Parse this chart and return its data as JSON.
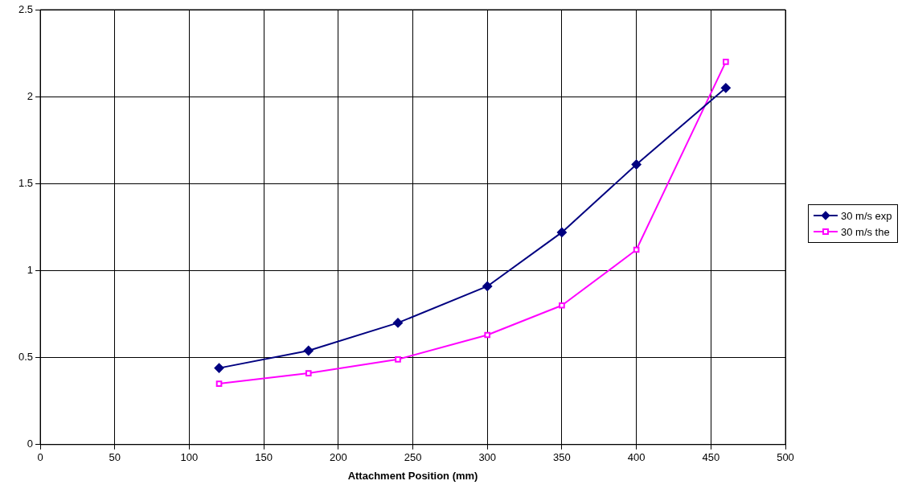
{
  "chart_data": {
    "type": "line",
    "xlabel": "Attachment Position (mm)",
    "xlim": [
      0,
      500
    ],
    "xticks": [
      0,
      50,
      100,
      150,
      200,
      250,
      300,
      350,
      400,
      450,
      500
    ],
    "ylim": [
      0,
      2.5
    ],
    "yticks": [
      0,
      0.5,
      1,
      1.5,
      2,
      2.5
    ],
    "grid": true,
    "legend": "right",
    "series": [
      {
        "name": "30 m/s exp",
        "color": "#000080",
        "marker": "diamond",
        "x": [
          120,
          180,
          240,
          300,
          350,
          400,
          460
        ],
        "values": [
          0.44,
          0.54,
          0.7,
          0.91,
          1.22,
          1.61,
          2.05
        ]
      },
      {
        "name": "30 m/s the",
        "color": "#ff00ff",
        "marker": "square",
        "x": [
          120,
          180,
          240,
          300,
          350,
          400,
          460
        ],
        "values": [
          0.35,
          0.41,
          0.49,
          0.63,
          0.8,
          1.12,
          2.2
        ]
      }
    ]
  }
}
